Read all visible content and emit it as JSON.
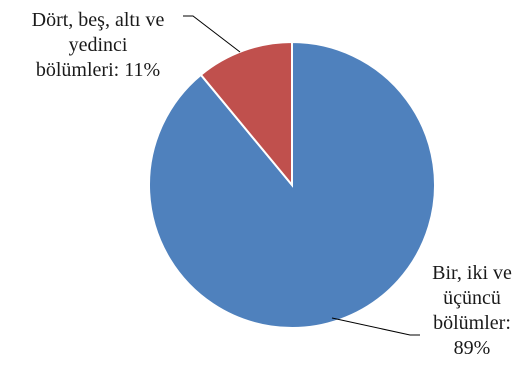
{
  "chart_data": {
    "type": "pie",
    "categories": [
      "Bir, iki ve üçüncü bölümler",
      "Dört, beş, altı ve yedinci bölümleri"
    ],
    "values": [
      89,
      11
    ],
    "colors": [
      "#4f81bd",
      "#c0504d"
    ],
    "slice_labels": [
      [
        "Bir, iki ve",
        "üçüncü",
        "bölümler:",
        "89%"
      ],
      [
        "Dört, beş, altı ve",
        "yedinci",
        "bölümleri: 11%"
      ]
    ],
    "legend": "none"
  }
}
